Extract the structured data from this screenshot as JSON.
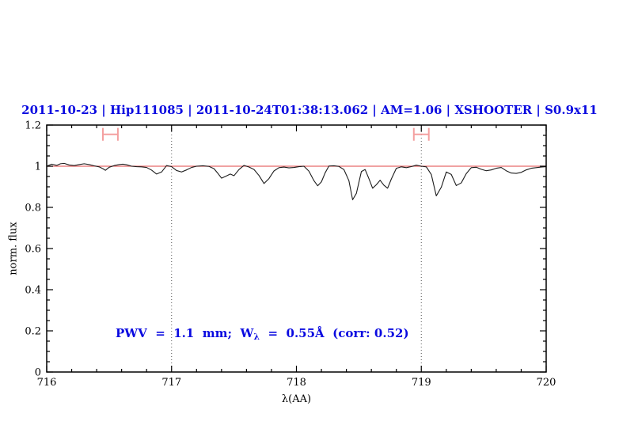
{
  "figure": {
    "background": "#ffffff",
    "title_color": "#0a0ae0",
    "axis_color": "#000000"
  },
  "chart_data": {
    "type": "line",
    "title": "2011-10-23 | Hip111085 | 2011-10-24T01:38:13.062 | AM=1.06 | XSHOOTER | S0.9x11",
    "xlabel": "λ(AA)",
    "ylabel": "norm. flux",
    "xlim": [
      716,
      720
    ],
    "ylim": [
      0,
      1.2
    ],
    "grid": false,
    "x_major_ticks": [
      716,
      717,
      718,
      719,
      720
    ],
    "x_tick_labels": [
      "716",
      "717",
      "718",
      "719",
      "720"
    ],
    "x_minor_step": 0.2,
    "y_major_ticks": [
      0,
      0.2,
      0.4,
      0.6,
      0.8,
      1,
      1.2
    ],
    "y_tick_labels": [
      "0",
      "0.2",
      "0.4",
      "0.6",
      "0.8",
      "1",
      "1.2"
    ],
    "y_minor_step": 0.05,
    "dotted_vlines": {
      "x": [
        717,
        719
      ],
      "color": "#555555"
    },
    "reference_line": {
      "y": 1.0,
      "color": "#e86a6a"
    },
    "range_markers": {
      "color": "#f4a0a0",
      "y": 1.155,
      "cap_half_height": 0.031,
      "items": [
        {
          "x_center": 716.51,
          "x_half_width": 0.06
        },
        {
          "x_center": 719.0,
          "x_half_width": 0.06
        }
      ]
    },
    "annotation": {
      "pre": "PWV  =  1.1  mm;  W",
      "sub": "λ",
      "post": "  =  0.55Å  (corr: 0.52)",
      "color": "#0a0ae0"
    },
    "series": [
      {
        "name": "telluric-spectrum",
        "color": "#1c1c1c",
        "x": [
          716.0,
          716.04,
          716.08,
          716.11,
          716.14,
          716.18,
          716.22,
          716.26,
          716.3,
          716.34,
          716.38,
          716.42,
          716.45,
          716.47,
          716.5,
          716.54,
          716.58,
          716.61,
          716.64,
          716.68,
          716.72,
          716.76,
          716.8,
          716.84,
          716.88,
          716.92,
          716.96,
          717.0,
          717.04,
          717.08,
          717.12,
          717.16,
          717.2,
          717.25,
          717.3,
          717.34,
          717.37,
          717.4,
          717.44,
          717.47,
          717.5,
          717.54,
          717.58,
          717.62,
          717.66,
          717.7,
          717.74,
          717.78,
          717.82,
          717.86,
          717.9,
          717.94,
          717.98,
          718.02,
          718.06,
          718.1,
          718.14,
          718.17,
          718.2,
          718.23,
          718.26,
          718.3,
          718.34,
          718.38,
          718.42,
          718.45,
          718.48,
          718.52,
          718.55,
          718.58,
          718.61,
          718.64,
          718.67,
          718.7,
          718.73,
          718.76,
          718.8,
          718.84,
          718.88,
          718.92,
          718.96,
          719.0,
          719.04,
          719.08,
          719.12,
          719.16,
          719.2,
          719.24,
          719.28,
          719.32,
          719.36,
          719.4,
          719.44,
          719.48,
          719.52,
          719.56,
          719.6,
          719.64,
          719.68,
          719.72,
          719.76,
          719.8,
          719.84,
          719.88,
          719.92,
          719.96,
          720.0
        ],
        "y": [
          1.0,
          1.01,
          1.004,
          1.012,
          1.014,
          1.006,
          1.003,
          1.008,
          1.012,
          1.008,
          1.002,
          0.997,
          0.988,
          0.98,
          0.995,
          1.003,
          1.008,
          1.01,
          1.007,
          1.0,
          0.998,
          0.997,
          0.994,
          0.981,
          0.962,
          0.972,
          1.003,
          0.998,
          0.979,
          0.972,
          0.982,
          0.994,
          1.0,
          1.002,
          0.999,
          0.988,
          0.966,
          0.942,
          0.953,
          0.962,
          0.954,
          0.984,
          1.004,
          0.996,
          0.984,
          0.955,
          0.916,
          0.94,
          0.977,
          0.993,
          0.996,
          0.992,
          0.994,
          0.998,
          1.0,
          0.976,
          0.93,
          0.905,
          0.924,
          0.968,
          1.001,
          1.002,
          0.999,
          0.984,
          0.93,
          0.837,
          0.868,
          0.974,
          0.984,
          0.94,
          0.893,
          0.91,
          0.932,
          0.908,
          0.893,
          0.938,
          0.99,
          0.997,
          0.993,
          0.998,
          1.005,
          1.0,
          0.997,
          0.96,
          0.856,
          0.898,
          0.972,
          0.96,
          0.906,
          0.919,
          0.964,
          0.993,
          0.995,
          0.985,
          0.978,
          0.982,
          0.99,
          0.994,
          0.978,
          0.967,
          0.965,
          0.97,
          0.982,
          0.99,
          0.993,
          0.996,
          0.998
        ]
      }
    ]
  }
}
